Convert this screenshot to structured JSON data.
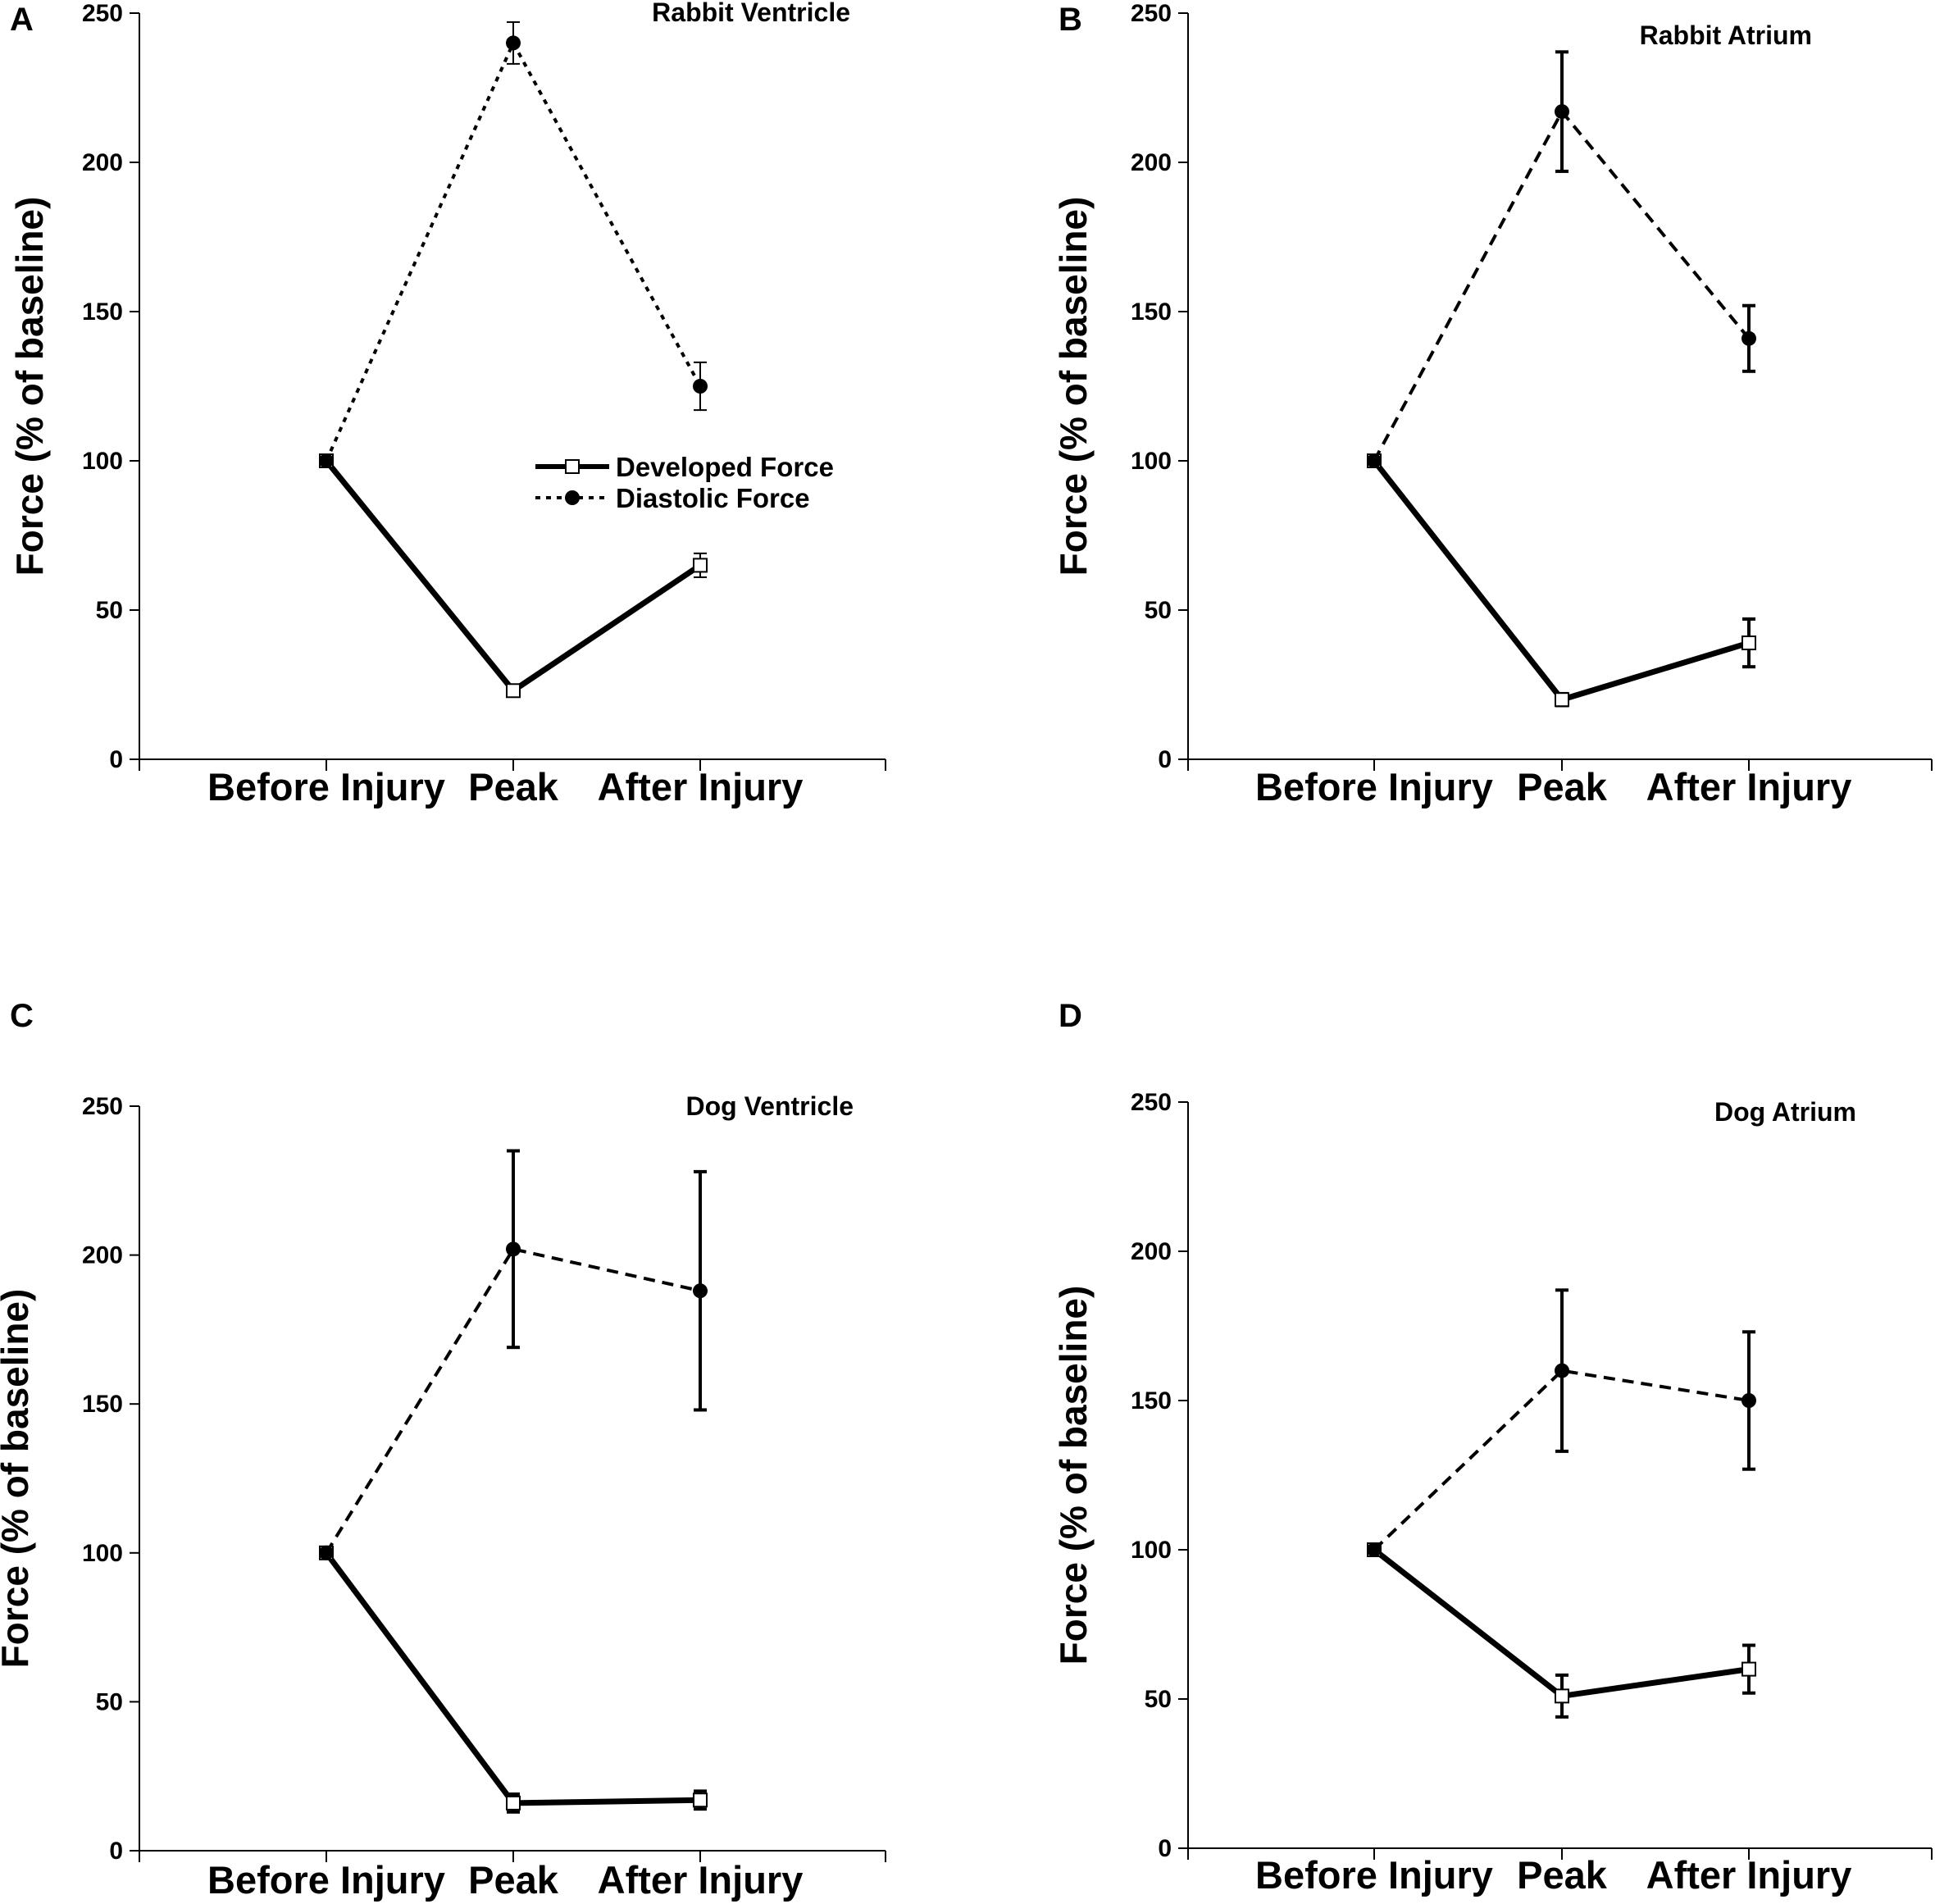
{
  "figure": {
    "panels": [
      "A",
      "B",
      "C",
      "D"
    ]
  },
  "chart_data": [
    {
      "type": "line",
      "panel": "A",
      "title": "Rabbit Ventricle",
      "xlabel": "",
      "ylabel": "Force (% of baseline)",
      "categories": [
        "Before Injury",
        "Peak",
        "After Injury"
      ],
      "ylim": [
        0,
        250
      ],
      "yticks": [
        0,
        50,
        100,
        150,
        200,
        250
      ],
      "legend": {
        "location": "center-right",
        "entries": [
          "Developed Force",
          "Diastolic Force"
        ]
      },
      "series": [
        {
          "name": "Developed Force",
          "values": [
            100,
            23,
            65
          ],
          "errors": [
            1,
            2,
            4
          ],
          "line": "solid",
          "marker": "open-square"
        },
        {
          "name": "Diastolic Force",
          "values": [
            100,
            240,
            125
          ],
          "errors": [
            1,
            7,
            8
          ],
          "line": "dotted",
          "marker": "filled-circle"
        }
      ]
    },
    {
      "type": "line",
      "panel": "B",
      "title": "Rabbit Atrium",
      "xlabel": "",
      "ylabel": "Force (% of baseline)",
      "categories": [
        "Before Injury",
        "Peak",
        "After Injury"
      ],
      "ylim": [
        0,
        250
      ],
      "yticks": [
        0,
        50,
        100,
        150,
        200,
        250
      ],
      "series": [
        {
          "name": "Developed Force",
          "values": [
            100,
            20,
            39
          ],
          "errors": [
            1,
            2,
            8
          ],
          "line": "solid",
          "marker": "open-square"
        },
        {
          "name": "Diastolic Force",
          "values": [
            100,
            217,
            141
          ],
          "errors": [
            1,
            20,
            11
          ],
          "line": "dashed",
          "marker": "filled-circle"
        }
      ]
    },
    {
      "type": "line",
      "panel": "C",
      "title": "Dog Ventricle",
      "xlabel": "",
      "ylabel": "Force (% of baseline)",
      "categories": [
        "Before Injury",
        "Peak",
        "After Injury"
      ],
      "ylim": [
        0,
        250
      ],
      "yticks": [
        0,
        50,
        100,
        150,
        200,
        250
      ],
      "series": [
        {
          "name": "Developed Force",
          "values": [
            100,
            16,
            17
          ],
          "errors": [
            1,
            3,
            3
          ],
          "line": "solid",
          "marker": "open-square"
        },
        {
          "name": "Diastolic Force",
          "values": [
            100,
            202,
            188
          ],
          "errors": [
            1,
            33,
            40
          ],
          "line": "dashed",
          "marker": "filled-circle"
        }
      ]
    },
    {
      "type": "line",
      "panel": "D",
      "title": "Dog Atrium",
      "xlabel": "",
      "ylabel": "Force (% of baseline)",
      "categories": [
        "Before Injury",
        "Peak",
        "After Injury"
      ],
      "ylim": [
        0,
        250
      ],
      "yticks": [
        0,
        50,
        100,
        150,
        200,
        250
      ],
      "series": [
        {
          "name": "Developed Force",
          "values": [
            100,
            51,
            60
          ],
          "errors": [
            1,
            7,
            8
          ],
          "line": "solid",
          "marker": "open-square"
        },
        {
          "name": "Diastolic Force",
          "values": [
            100,
            160,
            150
          ],
          "errors": [
            1,
            27,
            23
          ],
          "line": "dashed",
          "marker": "filled-circle"
        }
      ]
    }
  ]
}
